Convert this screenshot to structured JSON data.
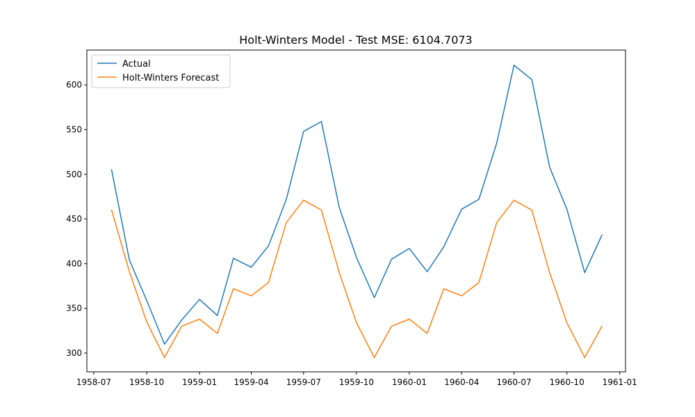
{
  "chart_data": {
    "type": "line",
    "title": "Holt-Winters Model - Test MSE: 6104.7073",
    "xlabel": "",
    "ylabel": "",
    "x": [
      "1958-08",
      "1958-09",
      "1958-10",
      "1958-11",
      "1958-12",
      "1959-01",
      "1959-02",
      "1959-03",
      "1959-04",
      "1959-05",
      "1959-06",
      "1959-07",
      "1959-08",
      "1959-09",
      "1959-10",
      "1959-11",
      "1959-12",
      "1960-01",
      "1960-02",
      "1960-03",
      "1960-04",
      "1960-05",
      "1960-06",
      "1960-07",
      "1960-08",
      "1960-09",
      "1960-10",
      "1960-11",
      "1960-12"
    ],
    "series": [
      {
        "name": "Actual",
        "color": "#1f77b4",
        "values": [
          505,
          404,
          359,
          310,
          337,
          360,
          342,
          406,
          396,
          420,
          472,
          548,
          559,
          463,
          407,
          362,
          405,
          417,
          391,
          419,
          461,
          472,
          535,
          622,
          606,
          508,
          461,
          390,
          432
        ]
      },
      {
        "name": "Holt-Winters Forecast",
        "color": "#ff7f0e",
        "values": [
          460,
          391,
          335,
          295,
          330,
          338,
          322,
          372,
          364,
          379,
          446,
          471,
          460,
          390,
          334,
          295,
          330,
          338,
          322,
          372,
          364,
          379,
          446,
          471,
          460,
          390,
          334,
          295,
          330
        ]
      }
    ],
    "x_ticks": [
      "1958-07",
      "1958-10",
      "1959-01",
      "1959-04",
      "1959-07",
      "1959-10",
      "1960-01",
      "1960-04",
      "1960-07",
      "1960-10",
      "1961-01"
    ],
    "y_ticks": [
      300,
      350,
      400,
      450,
      500,
      550,
      600
    ],
    "xlim": [
      "1958-06-19",
      "1961-01-11"
    ],
    "ylim": [
      279,
      639
    ],
    "legend_position": "upper-left",
    "grid": false
  }
}
